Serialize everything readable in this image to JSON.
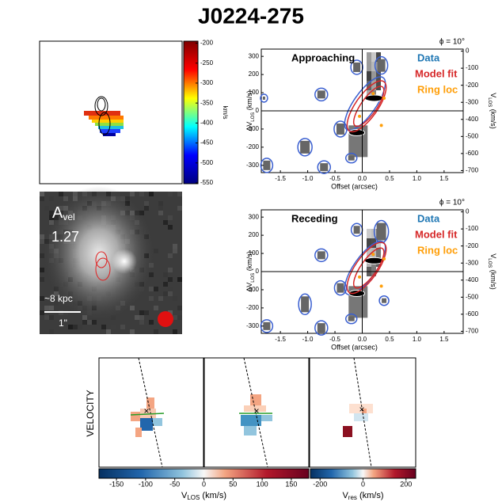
{
  "title": "J0224-275",
  "map_colorbar": {
    "label": "km/s",
    "lim": [
      -195,
      -552
    ],
    "ticks": [
      -200,
      -250,
      -300,
      -350,
      -400,
      -450,
      -500,
      -550
    ],
    "colors": [
      "#00007f",
      "#0000ff",
      "#00ffff",
      "#ffff00",
      "#ff0000",
      "#7f0000"
    ]
  },
  "image_panel": {
    "label": "A",
    "label_sub": "vel",
    "value": 1.27,
    "scale": "~8 kpc",
    "bar": "1\""
  },
  "pv_axes": {
    "xlim": [
      -1.85,
      1.85
    ],
    "xticks": [
      -1.5,
      {
        "value": -1,
        "label": "-1.0"
      },
      -0.5,
      {
        "value": 0,
        "label": "0.0"
      },
      0.5,
      {
        "value": 1,
        "label": "1.0"
      },
      1.5
    ],
    "ylim": [
      -340,
      340
    ],
    "yticks": [
      300,
      200,
      100,
      0,
      -100,
      -200,
      -300
    ],
    "y2lim": [
      12,
      -712
    ],
    "y2ticks": [
      0,
      -100,
      -200,
      -300,
      -400,
      -500,
      -600,
      -700
    ],
    "xlabel": "Offset (arcsec)",
    "ylabel": {
      "main": "ΔV",
      "sub": "LOS",
      "unit": " (km/s)"
    },
    "y2label": {
      "main": "V",
      "sub": "LOS",
      "unit": " (km/s)"
    }
  },
  "pv_panels": [
    {
      "title": "Approaching",
      "phi": "ϕ = 10°"
    },
    {
      "title": "Receding",
      "phi": "ϕ = 10°"
    }
  ],
  "legend": [
    {
      "name": "Data",
      "color": "#1f77b4"
    },
    {
      "name": "Model fit",
      "color": "#d62728"
    },
    {
      "name": "Ring loc",
      "color": "#ff9f0a"
    }
  ],
  "side_label": "VELOCITY",
  "colorbars": [
    {
      "label": {
        "main": "V",
        "sub": "LOS",
        "unit": " (km/s)"
      },
      "lim": [
        -180,
        180
      ],
      "ticks": [
        -150,
        -100,
        -50,
        0,
        50,
        100,
        150
      ]
    },
    {
      "label": {
        "main": "V",
        "sub": "res",
        "unit": " (km/s)"
      },
      "lim": [
        -245,
        245
      ],
      "ticks": [
        -200,
        0,
        200
      ]
    }
  ]
}
